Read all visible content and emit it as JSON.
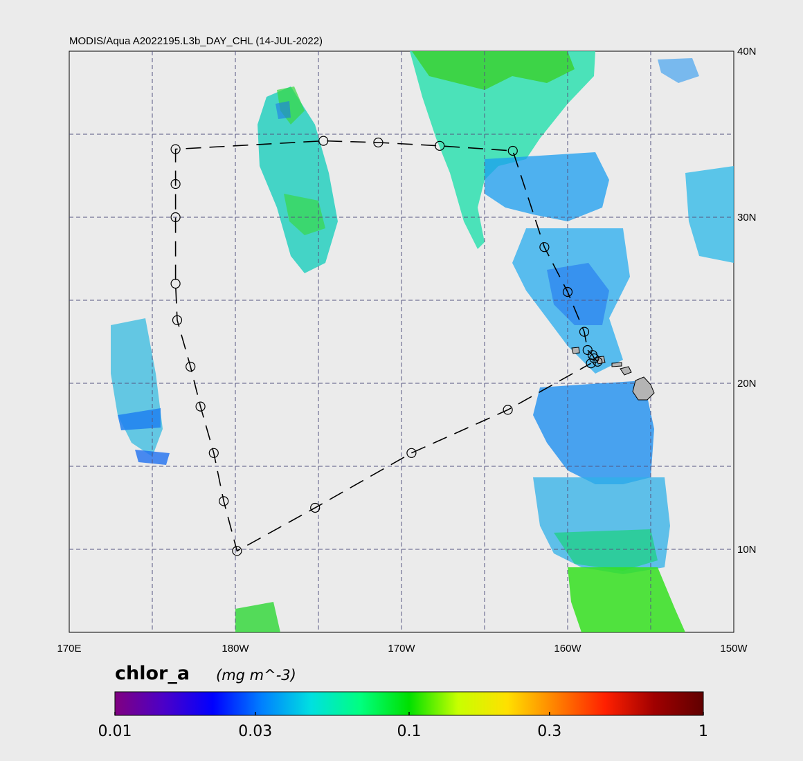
{
  "map": {
    "title": "MODIS/Aqua A2022195.L3b_DAY_CHL (14-JUL-2022)",
    "lon_range": [
      170,
      210
    ],
    "lat_range": [
      5,
      40
    ],
    "lon_labels": [
      {
        "lon": 170,
        "text": "170E"
      },
      {
        "lon": 180,
        "text": "180W"
      },
      {
        "lon": 190,
        "text": "170W"
      },
      {
        "lon": 200,
        "text": "160W"
      },
      {
        "lon": 210,
        "text": "150W"
      }
    ],
    "lat_labels": [
      {
        "lat": 40,
        "text": "40N"
      },
      {
        "lat": 30,
        "text": "30N"
      },
      {
        "lat": 20,
        "text": "20N"
      },
      {
        "lat": 10,
        "text": "10N"
      }
    ],
    "grid_lons": [
      175,
      180,
      185,
      190,
      195,
      200,
      205
    ],
    "grid_lats": [
      10,
      15,
      20,
      25,
      30,
      35
    ],
    "colors": {
      "background": "#ebebeb",
      "grid": "#555580",
      "track": "#000000",
      "land": "#b4b4b4"
    }
  },
  "track": {
    "waypoints": [
      [
        201.8,
        21.3
      ],
      [
        201.6,
        21.5
      ],
      [
        201.5,
        21.7
      ],
      [
        201.2,
        22.0
      ],
      [
        201.0,
        23.1
      ],
      [
        200.0,
        25.5
      ],
      [
        198.6,
        28.2
      ],
      [
        196.7,
        34.0
      ],
      [
        192.3,
        34.3
      ],
      [
        188.6,
        34.5
      ],
      [
        185.3,
        34.6
      ],
      [
        176.4,
        34.1
      ],
      [
        176.4,
        32.0
      ],
      [
        176.4,
        30.0
      ],
      [
        176.4,
        26.0
      ],
      [
        176.5,
        23.8
      ],
      [
        177.3,
        21.0
      ],
      [
        177.9,
        18.6
      ],
      [
        178.7,
        15.8
      ],
      [
        179.3,
        12.9
      ],
      [
        180.1,
        9.9
      ],
      [
        184.8,
        12.5
      ],
      [
        190.6,
        15.8
      ],
      [
        196.4,
        18.4
      ],
      [
        201.4,
        21.2
      ]
    ]
  },
  "colorbar": {
    "variable": "chlor_a",
    "units": "(mg m^-3)",
    "scale": "log",
    "range": [
      0.01,
      1
    ],
    "ticks": [
      {
        "value": 0.01,
        "text": "0.01"
      },
      {
        "value": 0.03,
        "text": "0.03"
      },
      {
        "value": 0.1,
        "text": "0.1"
      },
      {
        "value": 0.3,
        "text": "0.3"
      },
      {
        "value": 1,
        "text": "1"
      }
    ],
    "stops": [
      "#800080",
      "#4b00c8",
      "#0000ff",
      "#0080ff",
      "#00e0e0",
      "#00ff80",
      "#00e000",
      "#c8ff00",
      "#ffe000",
      "#ff8000",
      "#ff2000",
      "#a00000",
      "#600000"
    ]
  }
}
